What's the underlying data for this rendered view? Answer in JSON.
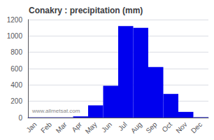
{
  "chart_data": {
    "type": "bar",
    "title": "Conakry : precipitation (mm)",
    "categories": [
      "Jan",
      "Feb",
      "Mar",
      "Apr",
      "May",
      "Jun",
      "Jul",
      "Aug",
      "Sep",
      "Oct",
      "Nov",
      "Dec"
    ],
    "values": [
      3,
      3,
      3,
      15,
      150,
      390,
      1120,
      1100,
      620,
      290,
      70,
      5
    ],
    "color": "#0000ee",
    "ylim": [
      0,
      1200
    ],
    "yticks": [
      0,
      200,
      400,
      600,
      800,
      1000,
      1200
    ],
    "grid": true,
    "annotation": "www.allmetsat.com"
  }
}
